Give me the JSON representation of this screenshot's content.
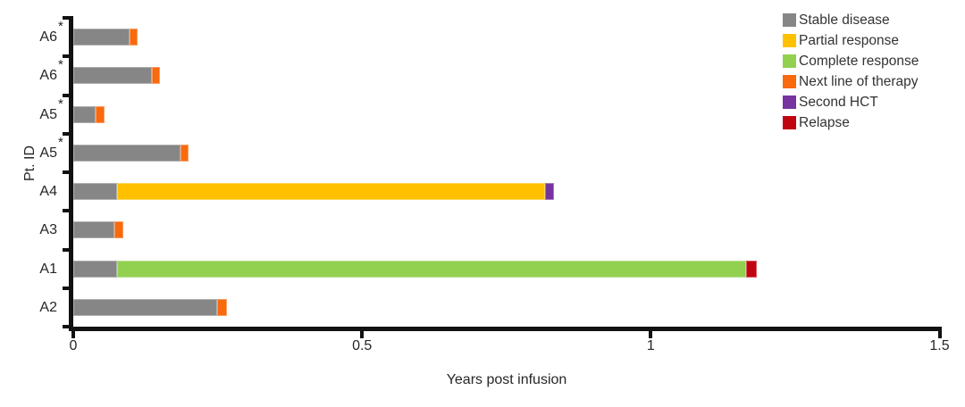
{
  "chart_data": {
    "type": "bar",
    "orientation": "horizontal",
    "title": "",
    "xlabel": "Years post infusion",
    "ylabel": "Pt. ID",
    "xlim": [
      0,
      1.5
    ],
    "xticks": [
      0,
      0.5,
      1,
      1.5
    ],
    "xtick_labels": [
      "0",
      "0.5",
      "1",
      "1.5"
    ],
    "grid": false,
    "legend_position": "top-right",
    "legend": [
      {
        "key": "stable",
        "label": "Stable disease",
        "color": "#868686"
      },
      {
        "key": "partial",
        "label": "Partial response",
        "color": "#FFC000"
      },
      {
        "key": "complete",
        "label": "Complete response",
        "color": "#92D050"
      },
      {
        "key": "next_line",
        "label": "Next line of therapy",
        "color": "#F9690E"
      },
      {
        "key": "second_hct",
        "label": "Second HCT",
        "color": "#7634A0"
      },
      {
        "key": "relapse",
        "label": "Relapse",
        "color": "#C00511"
      }
    ],
    "asterisk_symbol": "*",
    "rows": [
      {
        "label": "A6",
        "asterisk": true,
        "segments": [
          {
            "key": "stable",
            "value": 0.098
          },
          {
            "key": "next_line",
            "value": 0.014
          }
        ]
      },
      {
        "label": "A6",
        "asterisk": true,
        "segments": [
          {
            "key": "stable",
            "value": 0.136
          },
          {
            "key": "next_line",
            "value": 0.014
          }
        ]
      },
      {
        "label": "A5",
        "asterisk": true,
        "segments": [
          {
            "key": "stable",
            "value": 0.039
          },
          {
            "key": "next_line",
            "value": 0.015
          }
        ]
      },
      {
        "label": "A5",
        "asterisk": true,
        "segments": [
          {
            "key": "stable",
            "value": 0.186
          },
          {
            "key": "next_line",
            "value": 0.014
          }
        ]
      },
      {
        "label": "A4",
        "asterisk": false,
        "segments": [
          {
            "key": "stable",
            "value": 0.076
          },
          {
            "key": "partial",
            "value": 0.741
          },
          {
            "key": "second_hct",
            "value": 0.016
          }
        ]
      },
      {
        "label": "A3",
        "asterisk": false,
        "segments": [
          {
            "key": "stable",
            "value": 0.071
          },
          {
            "key": "next_line",
            "value": 0.016
          }
        ]
      },
      {
        "label": "A1",
        "asterisk": false,
        "segments": [
          {
            "key": "stable",
            "value": 0.076
          },
          {
            "key": "complete",
            "value": 1.089
          },
          {
            "key": "relapse",
            "value": 0.019
          }
        ]
      },
      {
        "label": "A2",
        "asterisk": false,
        "segments": [
          {
            "key": "stable",
            "value": 0.249
          },
          {
            "key": "next_line",
            "value": 0.017
          }
        ]
      }
    ]
  }
}
